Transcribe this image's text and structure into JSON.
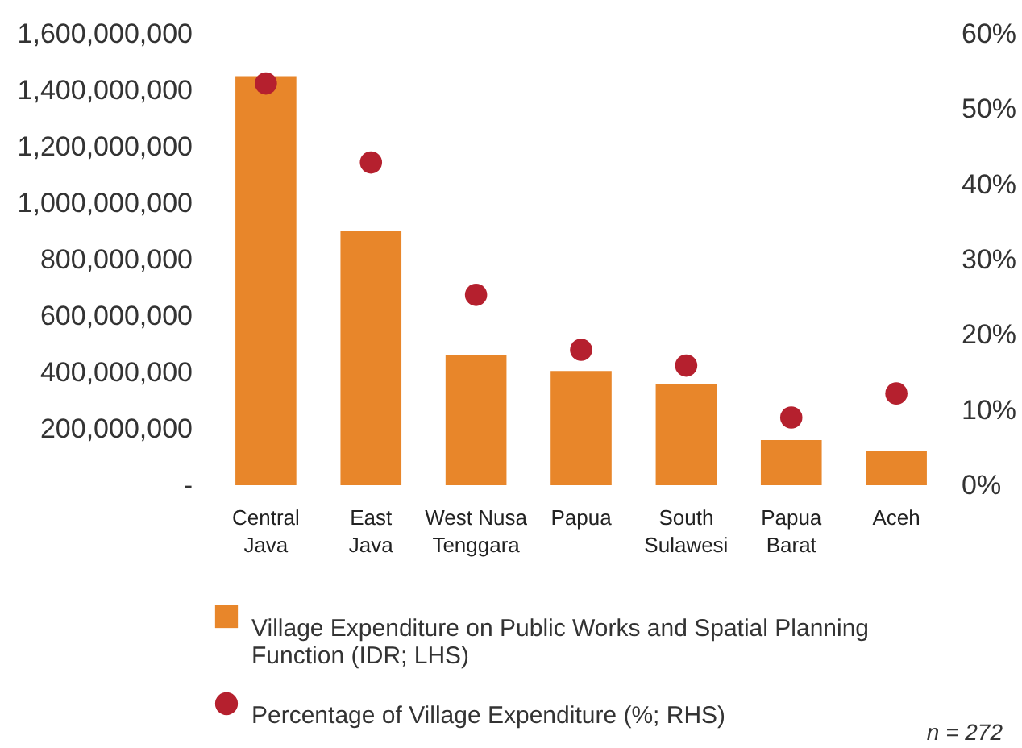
{
  "chart_data": {
    "type": "bar",
    "categories": [
      "Central\nJava",
      "East\nJava",
      "West Nusa\nTenggara",
      "Papua",
      "South\nSulawesi",
      "Papua\nBarat",
      "Aceh"
    ],
    "series": [
      {
        "name": "Village Expenditure on Public Works and Spatial Planning Function (IDR; LHS)",
        "color": "#e8862a",
        "values": [
          1450000000,
          900000000,
          460000000,
          405000000,
          360000000,
          160000000,
          120000000
        ]
      },
      {
        "name": "Percentage of Village Expenditure (%; RHS)",
        "type": "scatter",
        "axis": "y2",
        "color": "#b5202e",
        "values": [
          53.4,
          42.9,
          25.3,
          18,
          15.9,
          9,
          12.2
        ]
      }
    ],
    "ylim": [
      0,
      1600000000
    ],
    "yticks": [
      {
        "value": 0,
        "label": "-"
      },
      {
        "value": 200000000,
        "label": "200,000,000"
      },
      {
        "value": 400000000,
        "label": "400,000,000"
      },
      {
        "value": 600000000,
        "label": "600,000,000"
      },
      {
        "value": 800000000,
        "label": "800,000,000"
      },
      {
        "value": 1000000000,
        "label": "1,000,000,000"
      },
      {
        "value": 1200000000,
        "label": "1,200,000,000"
      },
      {
        "value": 1400000000,
        "label": "1,400,000,000"
      },
      {
        "value": 1600000000,
        "label": "1,600,000,000"
      }
    ],
    "y2lim": [
      0,
      60
    ],
    "y2ticks": [
      {
        "value": 0,
        "label": "0%"
      },
      {
        "value": 10,
        "label": "10%"
      },
      {
        "value": 20,
        "label": "20%"
      },
      {
        "value": 30,
        "label": "30%"
      },
      {
        "value": 40,
        "label": "40%"
      },
      {
        "value": 50,
        "label": "50%"
      },
      {
        "value": 60,
        "label": "60%"
      }
    ],
    "marker": "circle",
    "legend": "bottom",
    "annotations": [
      "n = 272"
    ]
  }
}
